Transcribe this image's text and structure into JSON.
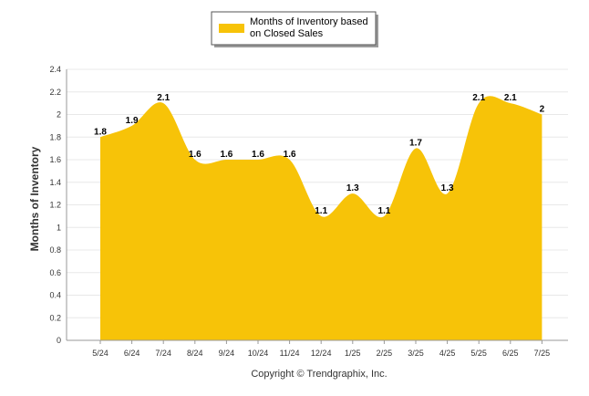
{
  "legend": {
    "line1": "Months of Inventory based",
    "line2": "on Closed Sales",
    "placement": "top-center"
  },
  "copyright": "Copyright © Trendgraphix, Inc.",
  "colors": {
    "area": "#f7c308",
    "grid": "#e8e8e8",
    "axis": "#999999"
  },
  "chart_data": {
    "type": "area",
    "categories": [
      "5/24",
      "6/24",
      "7/24",
      "8/24",
      "9/24",
      "10/24",
      "11/24",
      "12/24",
      "1/25",
      "2/25",
      "3/25",
      "4/25",
      "5/25",
      "6/25",
      "7/25"
    ],
    "series": [
      {
        "name": "Months of Inventory based on Closed Sales",
        "values": [
          1.8,
          1.9,
          2.1,
          1.6,
          1.6,
          1.6,
          1.6,
          1.1,
          1.3,
          1.1,
          1.7,
          1.3,
          2.1,
          2.1,
          2
        ]
      }
    ],
    "data_labels": [
      "1.8",
      "1.9",
      "2.1",
      "1.6",
      "1.6",
      "1.6",
      "1.6",
      "1.1",
      "1.3",
      "1.1",
      "1.7",
      "1.3",
      "2.1",
      "2.1",
      "2"
    ],
    "ylabel": "Months of Inventory",
    "xlabel": "",
    "ylim": [
      0,
      2.4
    ],
    "yticks": [
      "0",
      "0.2",
      "0.4",
      "0.6",
      "0.8",
      "1",
      "1.2",
      "1.4",
      "1.6",
      "1.8",
      "2",
      "2.2",
      "2.4"
    ],
    "grid": true
  }
}
